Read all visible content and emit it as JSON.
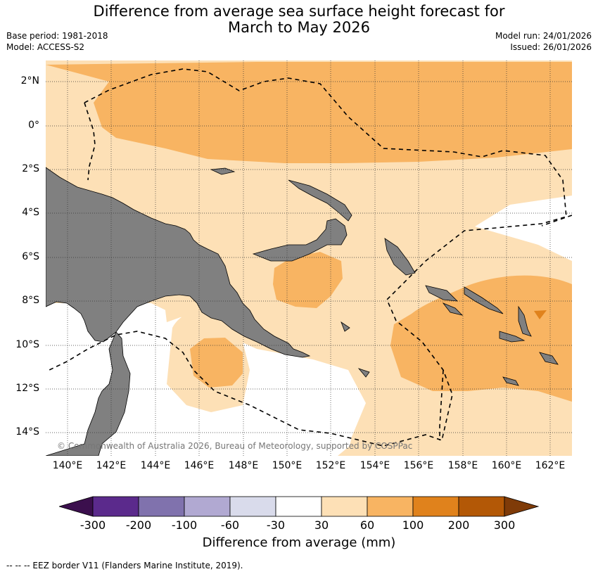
{
  "title_line1": "Difference from average sea surface height forecast for",
  "title_line2": "March to May 2026",
  "base_period": "Base period: 1981-2018",
  "model": "Model: ACCESS-S2",
  "model_run": "Model run: 24/01/2026",
  "issued": "Issued: 26/01/2026",
  "lat_labels": [
    "2°N",
    "0°",
    "2°S",
    "4°S",
    "6°S",
    "8°S",
    "10°S",
    "12°S",
    "14°S"
  ],
  "lon_labels": [
    "140°E",
    "142°E",
    "144°E",
    "146°E",
    "148°E",
    "150°E",
    "152°E",
    "154°E",
    "156°E",
    "158°E",
    "160°E",
    "162°E"
  ],
  "copyright": "© Commonwealth of Australia 2026, Bureau of Meteorology, supported by COSPPac",
  "colorbar": {
    "ticks": [
      "-300",
      "-200",
      "-100",
      "-60",
      "-30",
      "30",
      "60",
      "100",
      "200",
      "300"
    ],
    "title": "Difference from average (mm)",
    "colors": [
      "#3b0f4d",
      "#5b2a8c",
      "#8072ad",
      "#b1a9d2",
      "#d9dbeb",
      "#ffffff",
      "#fde0b6",
      "#f8b462",
      "#e0821c",
      "#b35806",
      "#7f3b08"
    ]
  },
  "footer": "--  --  -- EEZ border V11 (Flanders Marine Institute, 2019).",
  "colors": {
    "land": "#808080",
    "bg": "#fde0b6",
    "mid": "#f8b462",
    "high": "#e0821c",
    "neutral": "#ffffff"
  }
}
